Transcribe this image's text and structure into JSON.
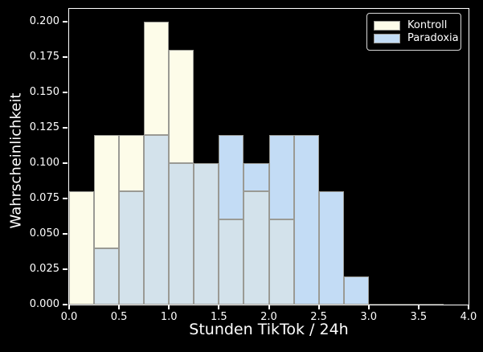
{
  "figure": {
    "background_color": "#000000",
    "foreground_color": "#ffffff"
  },
  "chart_data": {
    "type": "bar",
    "subtype": "overlapping-histogram",
    "title": "",
    "xlabel": "Stunden TikTok / 24h",
    "ylabel": "Wahrscheinlichkeit",
    "xlim": [
      0.0,
      4.0
    ],
    "ylim": [
      0.0,
      0.209
    ],
    "x_ticks": [
      0.0,
      0.5,
      1.0,
      1.5,
      2.0,
      2.5,
      3.0,
      3.5,
      4.0
    ],
    "x_tick_labels": [
      "0.0",
      "0.5",
      "1.0",
      "1.5",
      "2.0",
      "2.5",
      "3.0",
      "3.5",
      "4.0"
    ],
    "y_ticks": [
      0.0,
      0.025,
      0.05,
      0.075,
      0.1,
      0.125,
      0.15,
      0.175,
      0.2
    ],
    "y_tick_labels": [
      "0.000",
      "0.025",
      "0.050",
      "0.075",
      "0.100",
      "0.125",
      "0.150",
      "0.175",
      "0.200"
    ],
    "grid": false,
    "bin_start": 0.0,
    "bin_width": 0.25,
    "bin_count": 15,
    "series": [
      {
        "name": "Kontroll",
        "color": "#FDFCE9",
        "values": [
          0.08,
          0.12,
          0.12,
          0.2,
          0.18,
          0.1,
          0.06,
          0.08,
          0.06,
          0.0,
          0.0,
          0.0,
          0.0,
          0.0,
          0.0
        ]
      },
      {
        "name": "Paradoxia",
        "color": "#C3DCF5",
        "values": [
          0.0,
          0.04,
          0.08,
          0.12,
          0.1,
          0.1,
          0.12,
          0.1,
          0.12,
          0.12,
          0.08,
          0.02,
          0.0,
          0.0,
          0.0
        ]
      }
    ],
    "overlap_color": "#D3E2EB",
    "edge_color": "#9a9a94",
    "legend": {
      "position": "upper right",
      "entries": [
        "Kontroll",
        "Paradoxia"
      ]
    }
  }
}
